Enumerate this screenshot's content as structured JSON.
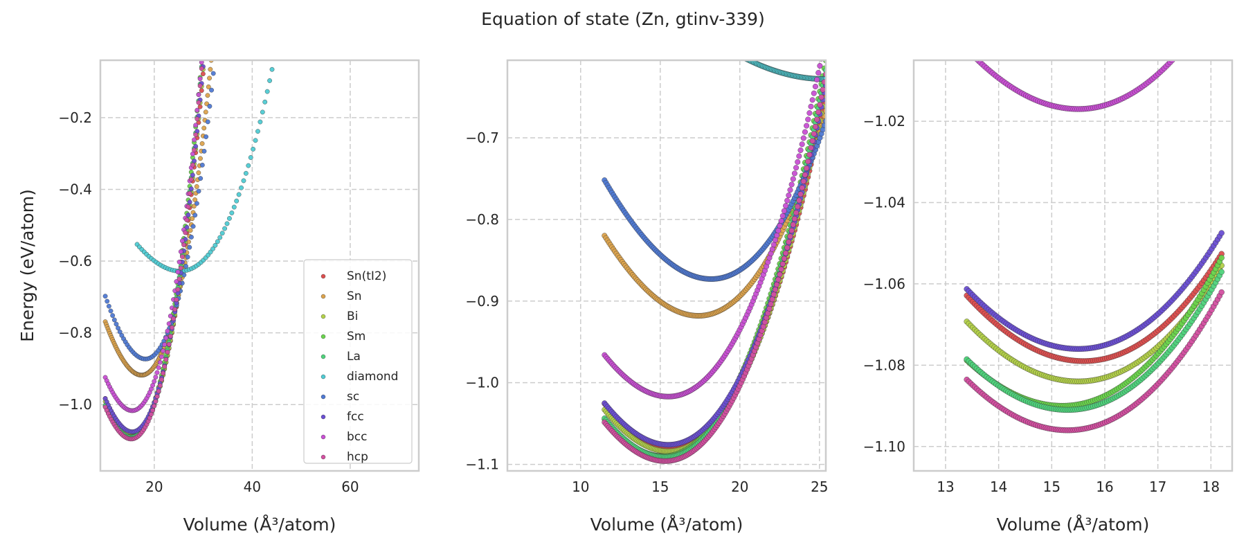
{
  "figure": {
    "title": "Equation of state (Zn, gtinv-339)"
  },
  "chart_data": [
    {
      "type": "scatter",
      "title": "",
      "xlabel": "Volume (Å³/atom)",
      "ylabel": "Energy (eV/atom)",
      "xlim": [
        9,
        74
      ],
      "ylim": [
        -1.185,
        -0.04
      ],
      "xticks": [
        20,
        40,
        60
      ],
      "yticks": [
        -1.0,
        -0.8,
        -0.6,
        -0.4,
        -0.2
      ],
      "grid": true,
      "legend": "lower-right",
      "ranges": {
        "Sn(tI2)": [
          10,
          46
        ],
        "Sn": [
          10,
          32
        ],
        "Bi": [
          10,
          46
        ],
        "Sm": [
          10,
          46
        ],
        "La": [
          10,
          46
        ],
        "diamond": [
          16.5,
          74
        ],
        "sc": [
          10,
          54.5
        ],
        "fcc": [
          10,
          46
        ],
        "bcc": [
          10,
          46
        ],
        "hcp": [
          10,
          46
        ]
      }
    },
    {
      "type": "scatter",
      "title": "",
      "xlabel": "Volume (Å³/atom)",
      "ylabel": "",
      "xlim": [
        5.4,
        25.4
      ],
      "ylim": [
        -1.108,
        -0.605
      ],
      "xticks": [
        10,
        15,
        20,
        25
      ],
      "yticks": [
        -1.1,
        -1.0,
        -0.9,
        -0.8,
        -0.7
      ],
      "grid": true,
      "ranges": {
        "Sn(tI2)": [
          11.5,
          25.4
        ],
        "Sn": [
          11.5,
          25.4
        ],
        "Bi": [
          11.5,
          25.4
        ],
        "Sm": [
          11.5,
          25.4
        ],
        "La": [
          11.5,
          25.4
        ],
        "diamond": [
          17,
          25.4
        ],
        "sc": [
          11.5,
          25.4
        ],
        "fcc": [
          11.5,
          25.4
        ],
        "bcc": [
          11.5,
          25.4
        ],
        "hcp": [
          11.5,
          25.4
        ]
      }
    },
    {
      "type": "scatter",
      "title": "",
      "xlabel": "Volume (Å³/atom)",
      "ylabel": "",
      "xlim": [
        12.4,
        18.4
      ],
      "ylim": [
        -1.106,
        -1.005
      ],
      "xticks": [
        13,
        14,
        15,
        16,
        17,
        18
      ],
      "yticks": [
        -1.1,
        -1.08,
        -1.06,
        -1.04,
        -1.02
      ],
      "grid": true,
      "ranges": {
        "Sn(tI2)": [
          13.4,
          18.2
        ],
        "Sn": [
          13.4,
          18.2
        ],
        "Bi": [
          13.4,
          18.2
        ],
        "Sm": [
          13.4,
          18.2
        ],
        "La": [
          13.4,
          18.2
        ],
        "diamond": [
          13.4,
          18.2
        ],
        "sc": [
          13.4,
          18.2
        ],
        "fcc": [
          13.4,
          18.2
        ],
        "bcc": [
          13.4,
          18.2
        ],
        "hcp": [
          13.4,
          18.2
        ]
      }
    }
  ],
  "series": [
    {
      "name": "Sn(tI2)",
      "color": "#dd4f4f",
      "e0": -1.079,
      "v0": 15.6,
      "b": 0.0036
    },
    {
      "name": "Sn",
      "color": "#dca34d",
      "e0": -0.918,
      "v0": 17.4,
      "b": 0.0033
    },
    {
      "name": "Bi",
      "color": "#b3d14a",
      "e0": -1.084,
      "v0": 15.5,
      "b": 0.0036
    },
    {
      "name": "Sm",
      "color": "#6ad44d",
      "e0": -1.09,
      "v0": 15.2,
      "b": 0.0037
    },
    {
      "name": "La",
      "color": "#4fd37c",
      "e0": -1.091,
      "v0": 15.3,
      "b": 0.0037
    },
    {
      "name": "diamond",
      "color": "#4fcbd3",
      "e0": -0.628,
      "v0": 25.3,
      "b": 0.0012
    },
    {
      "name": "sc",
      "color": "#4f79d3",
      "e0": -0.873,
      "v0": 18.2,
      "b": 0.0032
    },
    {
      "name": "fcc",
      "color": "#6a4fd3",
      "e0": -1.076,
      "v0": 15.5,
      "b": 0.0036
    },
    {
      "name": "bcc",
      "color": "#c84fd3",
      "e0": -1.017,
      "v0": 15.5,
      "b": 0.0036
    },
    {
      "name": "hcp",
      "color": "#d34fa0",
      "e0": -1.096,
      "v0": 15.3,
      "b": 0.0037
    }
  ]
}
